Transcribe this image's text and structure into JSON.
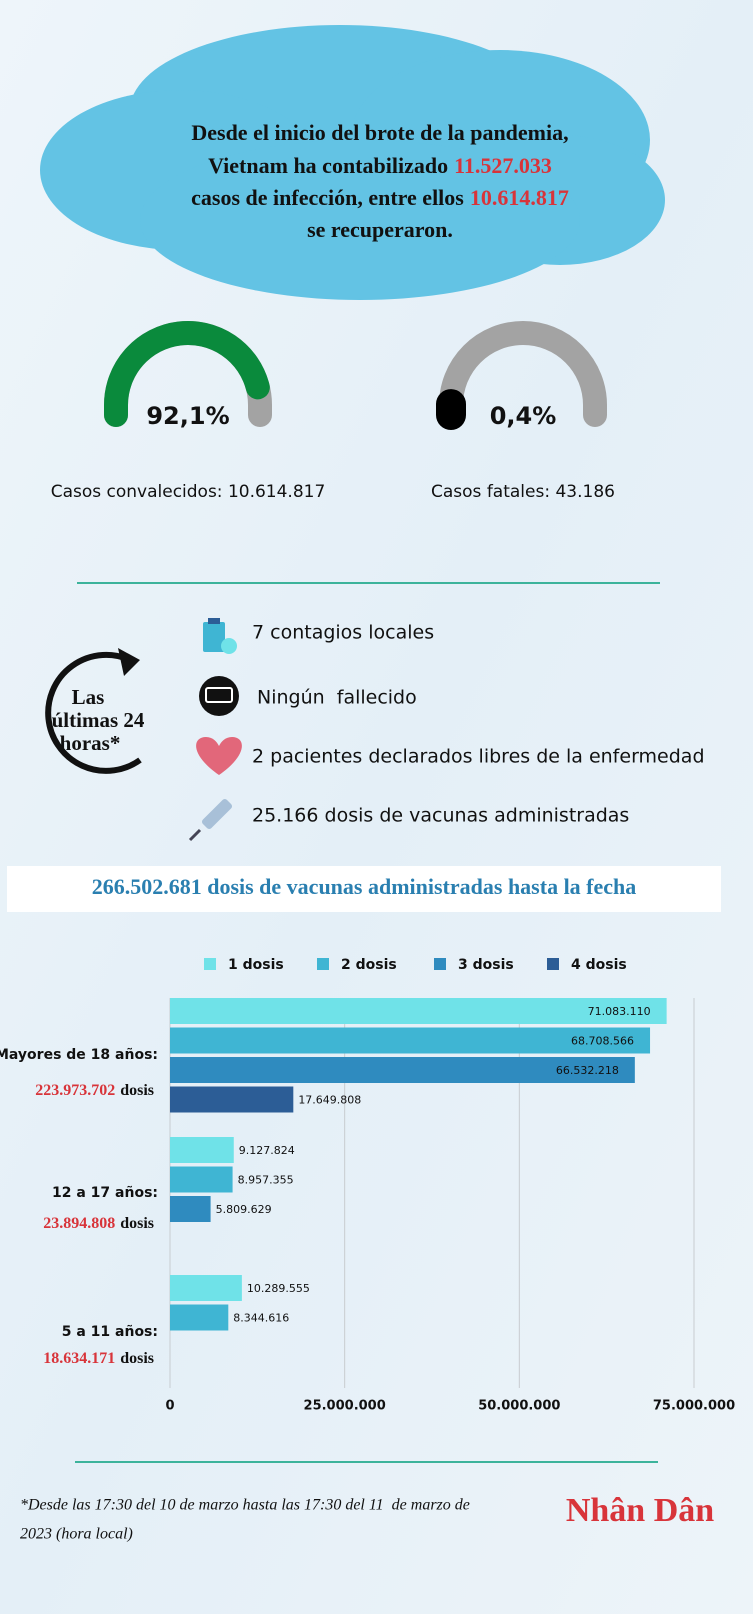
{
  "header": {
    "line1": "Desde el inicio del brote de la pandemia,",
    "line2": "Vietnam ha contabilizado",
    "infected": "11.527.033",
    "line3": "casos de infección, entre ellos",
    "recovered": "10.614.817",
    "line4": "se recuperaron."
  },
  "gauges": [
    {
      "value": 92.1,
      "value_label": "92,1%",
      "color": "#0a8a3c",
      "caption": "Casos convalecidos: 10.614.817"
    },
    {
      "value": 0.4,
      "value_label": "0,4%",
      "color": "#000000",
      "caption": "Casos fatales: 43.186"
    }
  ],
  "last24": {
    "title": [
      "Las",
      "últimas 24",
      "horas*"
    ],
    "items": [
      "7 contagios locales",
      "Ningún  fallecido",
      "2 pacientes declarados libres de la enfermedad",
      "25.166 dosis de vacunas administradas"
    ]
  },
  "banner": "266.502.681 dosis de vacunas administradas hasta la fecha",
  "chart_data": {
    "type": "hbar",
    "categories": [
      "Mayores de 18 años:",
      "12 a 17 años:",
      "5 a 11 años:"
    ],
    "category_totals": [
      "223.973.702",
      "23.894.808",
      "18.634.171"
    ],
    "total_unit": "dosis",
    "series": [
      {
        "name": "1 dosis",
        "color": "#6fe2e8",
        "values": [
          71083110,
          9127824,
          10289555
        ],
        "value_labels": [
          "71.083.110",
          "9.127.824",
          "10.289.555"
        ]
      },
      {
        "name": "2 dosis",
        "color": "#3fb5d3",
        "values": [
          68708566,
          8957355,
          8344616
        ],
        "value_labels": [
          "68.708.566",
          "8.957.355",
          "8.344.616"
        ]
      },
      {
        "name": "3 dosis",
        "color": "#2f8bbf",
        "values": [
          66532218,
          5809629,
          null
        ],
        "value_labels": [
          "66.532.218",
          "5.809.629",
          null
        ]
      },
      {
        "name": "4 dosis",
        "color": "#2c5d96",
        "values": [
          17649808,
          null,
          null
        ],
        "value_labels": [
          "17.649.808",
          null,
          null
        ]
      }
    ],
    "xlim": [
      0,
      75000000
    ],
    "xticks": [
      0,
      {
        "value": 25000000,
        "label": "25.000.000"
      },
      {
        "value": 50000000,
        "label": "50.000.000"
      },
      {
        "value": 75000000,
        "label": "75.000.000"
      }
    ],
    "grid": true
  },
  "footnote": [
    "*Desde las 17:30 del 10 de marzo hasta las 17:30 del 11  de marzo de",
    "2023 (hora local)"
  ],
  "logo": "Nhân Dân"
}
